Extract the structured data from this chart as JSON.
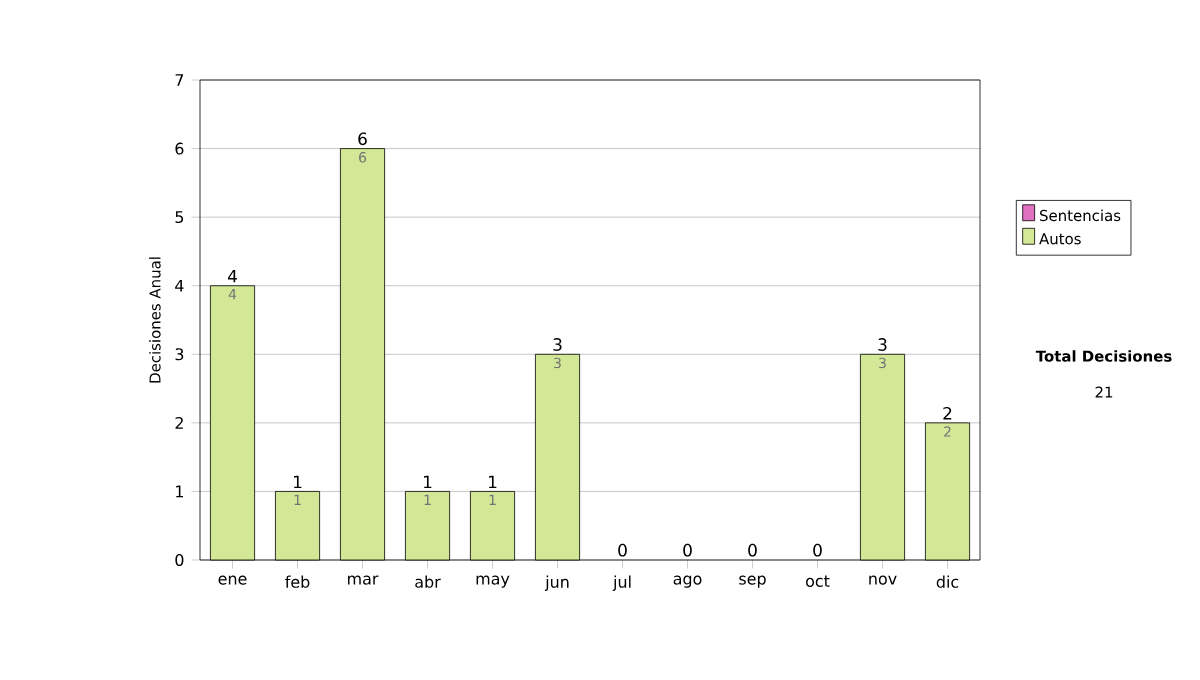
{
  "chart_data": {
    "type": "bar",
    "ylabel": "Decisiones Anual",
    "categories": [
      "ene",
      "feb",
      "mar",
      "abr",
      "may",
      "jun",
      "jul",
      "ago",
      "sep",
      "oct",
      "nov",
      "dic"
    ],
    "stacked": true,
    "series": [
      {
        "name": "Sentencias",
        "color": "#e070c0",
        "values": [
          0,
          0,
          0,
          0,
          0,
          0,
          0,
          0,
          0,
          0,
          0,
          0
        ]
      },
      {
        "name": "Autos",
        "color": "#d2e896",
        "values": [
          4,
          1,
          6,
          1,
          1,
          3,
          0,
          0,
          0,
          0,
          3,
          2
        ],
        "value_labels": [
          "4",
          "1",
          "6",
          "1",
          "1",
          "3",
          null,
          null,
          null,
          null,
          "3",
          "2"
        ]
      }
    ],
    "totals": [
      "4",
      "1",
      "6",
      "1",
      "1",
      "3",
      "0",
      "0",
      "0",
      "0",
      "3",
      "2"
    ],
    "ylim": [
      0,
      7
    ],
    "yticks": [
      0,
      1,
      2,
      3,
      4,
      5,
      6,
      7
    ],
    "grid": "y",
    "legend": "right",
    "annotations": [
      "**Total Decisiones**",
      "21"
    ]
  }
}
